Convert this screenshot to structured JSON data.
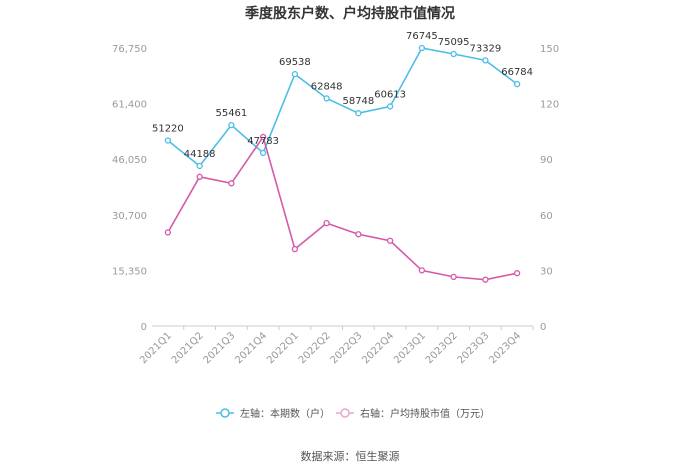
{
  "chart_data": {
    "type": "line",
    "title": "季度股东户数、户均持股市值情况",
    "categories": [
      "2021Q1",
      "2021Q2",
      "2021Q3",
      "2021Q4",
      "2022Q1",
      "2022Q2",
      "2022Q3",
      "2022Q4",
      "2023Q1",
      "2023Q2",
      "2023Q3",
      "2023Q4"
    ],
    "left_axis": {
      "ticks": [
        "0",
        "15,350",
        "30,700",
        "46,050",
        "61,400",
        "76,750"
      ],
      "min": 0,
      "max": 76750
    },
    "right_axis": {
      "ticks": [
        "0",
        "30",
        "60",
        "90",
        "120",
        "150"
      ],
      "min": 0,
      "max": 150
    },
    "series": [
      {
        "name": "左轴：本期数（户）",
        "axis": "left",
        "color": "#4dbde8",
        "values": [
          51220,
          44188,
          55461,
          47783,
          69538,
          62848,
          58748,
          60613,
          76745,
          75095,
          73329,
          66784
        ],
        "labels": [
          "51220",
          "44188",
          "55461",
          "47783",
          "69538",
          "62848",
          "58748",
          "60613",
          "76745",
          "75095",
          "73329",
          "66784"
        ]
      },
      {
        "name": "右轴：户均持股市值（万元）",
        "axis": "right",
        "color": "#d45aa8",
        "values": [
          50.5,
          80.5,
          77,
          102,
          41.5,
          55.5,
          49.5,
          46,
          30,
          26.5,
          25,
          28.5
        ]
      }
    ],
    "grid": false,
    "legend": "bottom"
  },
  "source": "数据来源：恒生聚源"
}
